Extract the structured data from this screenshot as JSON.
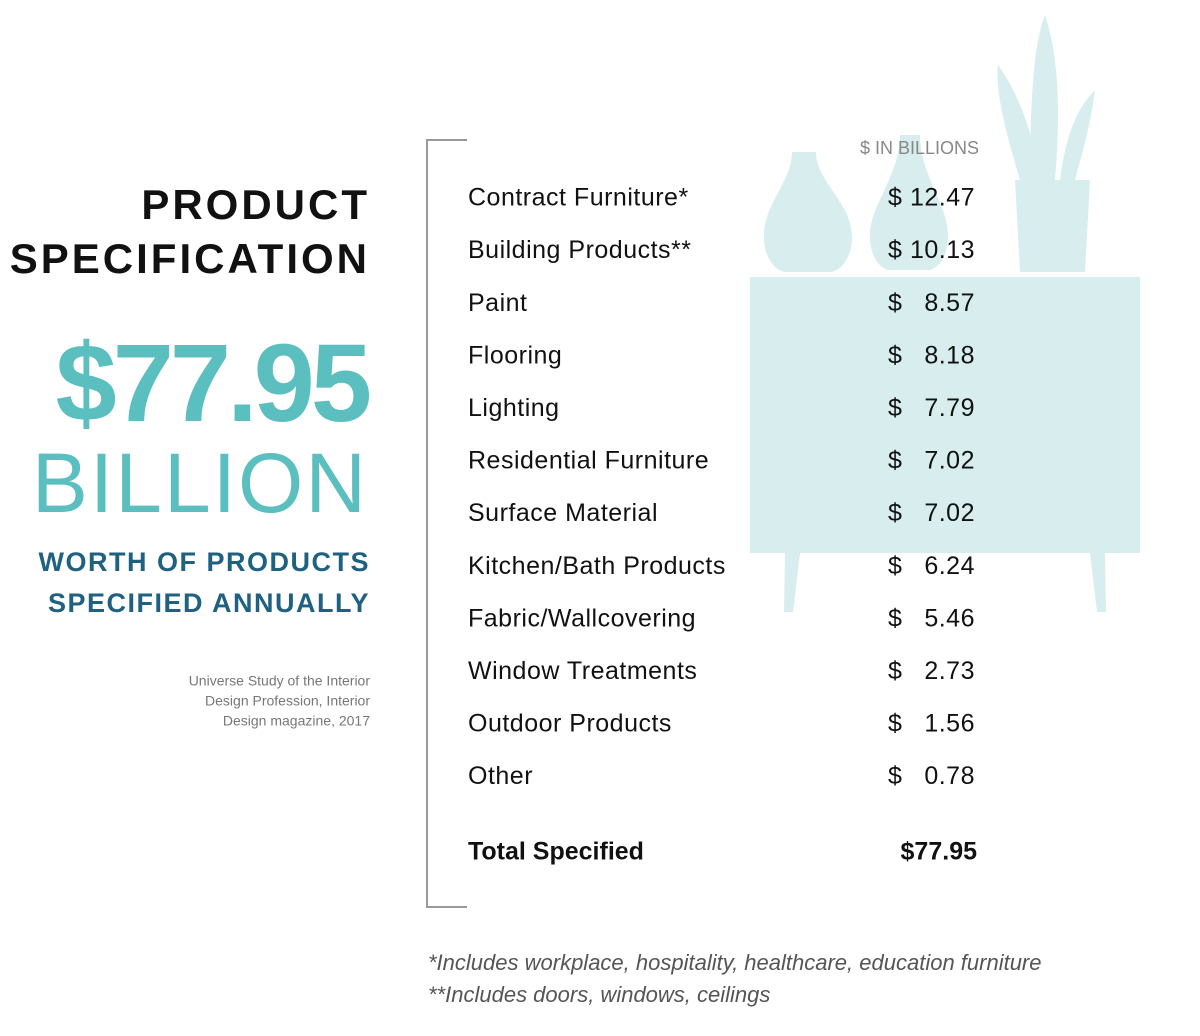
{
  "header": {
    "title_lines": [
      "PRODUCT",
      "SPECIFICATION"
    ],
    "headline_value": "$77.95",
    "headline_unit": "BILLION",
    "subtitle_lines": [
      "WORTH OF PRODUCTS",
      "SPECIFIED ANNUALLY"
    ],
    "source_lines": [
      "Universe Study of the Interior",
      "Design Profession, Interior",
      "Design magazine, 2017"
    ]
  },
  "table": {
    "unit_label": "$ IN BILLIONS",
    "rows": [
      {
        "label": "Contract Furniture*",
        "symbol": "$",
        "amount": 12.47
      },
      {
        "label": "Building Products**",
        "symbol": "$",
        "amount": 10.13
      },
      {
        "label": "Paint",
        "symbol": "$",
        "amount": 8.57
      },
      {
        "label": "Flooring",
        "symbol": "$",
        "amount": 8.18
      },
      {
        "label": "Lighting",
        "symbol": "$",
        "amount": 7.79
      },
      {
        "label": "Residential Furniture",
        "symbol": "$",
        "amount": 7.02
      },
      {
        "label": "Surface Material",
        "symbol": "$",
        "amount": 7.02
      },
      {
        "label": "Kitchen/Bath Products",
        "symbol": "$",
        "amount": 6.24
      },
      {
        "label": "Fabric/Wallcovering",
        "symbol": "$",
        "amount": 5.46
      },
      {
        "label": "Window Treatments",
        "symbol": "$",
        "amount": 2.73
      },
      {
        "label": "Outdoor Products",
        "symbol": "$",
        "amount": 1.56
      },
      {
        "label": "Other",
        "symbol": "$",
        "amount": 0.78
      }
    ],
    "total": {
      "label": "Total Specified",
      "value": "$77.95"
    }
  },
  "footnotes": [
    "*Includes workplace, hospitality, healthcare, education furniture",
    "**Includes doors, windows, ceilings"
  ]
}
